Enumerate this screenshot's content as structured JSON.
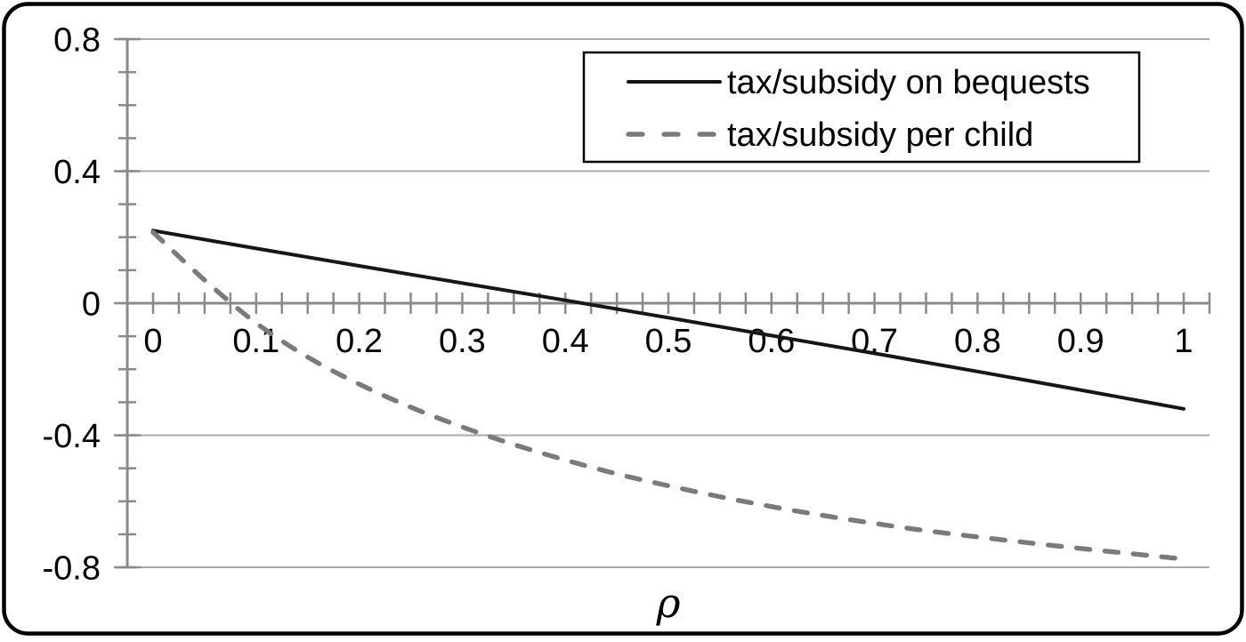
{
  "colors": {
    "background": "#ffffff",
    "frame_border": "#000000",
    "axis": "#8a8a8a",
    "grid": "#a9a9a9",
    "text": "#000000",
    "solid_series": "#161616",
    "dashed_series": "#7a7a7a"
  },
  "chart_data": {
    "type": "line",
    "title": "",
    "xlabel": "ρ",
    "ylabel": "",
    "grid": "horizontal-major-only",
    "x_axis": {
      "min": 0,
      "max": 1,
      "overhang": 0.025,
      "minor_step": 0.025,
      "major_ticks": [
        {
          "value": 0,
          "label": "0"
        },
        {
          "value": 0.1,
          "label": "0.1"
        },
        {
          "value": 0.2,
          "label": "0.2"
        },
        {
          "value": 0.3,
          "label": "0.3"
        },
        {
          "value": 0.4,
          "label": "0.4"
        },
        {
          "value": 0.5,
          "label": "0.5"
        },
        {
          "value": 0.6,
          "label": "0.6"
        },
        {
          "value": 0.7,
          "label": "0.7"
        },
        {
          "value": 0.8,
          "label": "0.8"
        },
        {
          "value": 0.9,
          "label": "0.9"
        },
        {
          "value": 1,
          "label": "1"
        }
      ]
    },
    "y_axis": {
      "min": -0.8,
      "max": 0.8,
      "minor_step": 0.1,
      "major_ticks": [
        {
          "value": 0.8,
          "label": "0.8"
        },
        {
          "value": 0.4,
          "label": "0.4"
        },
        {
          "value": 0,
          "label": "0"
        },
        {
          "value": -0.4,
          "label": "-0.4"
        },
        {
          "value": -0.8,
          "label": "-0.8"
        }
      ]
    },
    "gridline_values": [
      0.8,
      0.4,
      0,
      -0.4,
      -0.8
    ],
    "series": [
      {
        "name": "tax/subsidy on bequests",
        "line_style": "solid",
        "color": "#161616",
        "zero_crossing": 0.41,
        "x": [
          0,
          0.1,
          0.2,
          0.3,
          0.4,
          0.5,
          0.6,
          0.7,
          0.8,
          0.9,
          1.0
        ],
        "y": [
          0.22,
          0.166,
          0.113,
          0.061,
          0.009,
          -0.044,
          -0.098,
          -0.152,
          -0.207,
          -0.263,
          -0.32
        ]
      },
      {
        "name": "tax/subsidy per child",
        "line_style": "dashed",
        "color": "#7a7a7a",
        "zero_crossing": 0.08,
        "x": [
          0,
          0.05,
          0.1,
          0.15,
          0.2,
          0.25,
          0.3,
          0.35,
          0.4,
          0.45,
          0.5,
          0.55,
          0.6,
          0.65,
          0.7,
          0.75,
          0.8,
          0.85,
          0.9,
          0.95,
          1.0
        ],
        "y": [
          0.215,
          0.07,
          -0.06,
          -0.163,
          -0.245,
          -0.315,
          -0.375,
          -0.428,
          -0.475,
          -0.517,
          -0.553,
          -0.586,
          -0.616,
          -0.643,
          -0.667,
          -0.689,
          -0.708,
          -0.726,
          -0.743,
          -0.759,
          -0.775
        ]
      }
    ],
    "legend": {
      "position": "top-right",
      "entries": [
        "tax/subsidy on bequests",
        "tax/subsidy per child"
      ]
    }
  }
}
